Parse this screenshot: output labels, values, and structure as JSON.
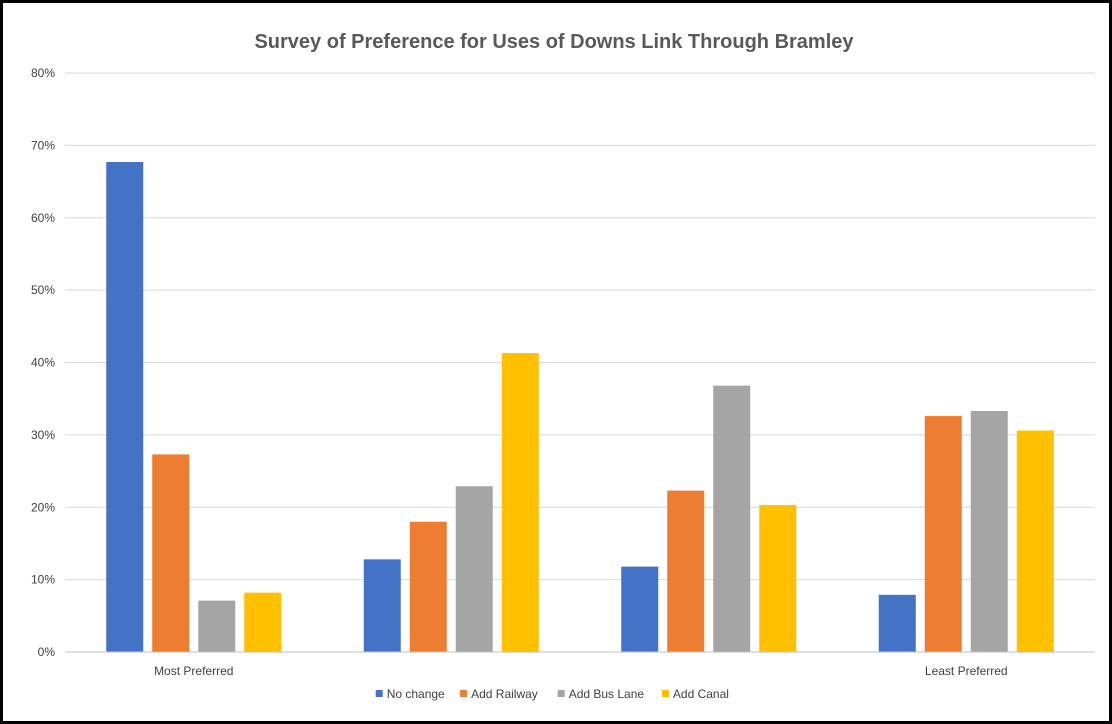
{
  "chart_data": {
    "type": "bar",
    "title": "Survey of Preference for Uses of Downs Link Through Bramley",
    "xlabel": "",
    "ylabel": "",
    "categories": [
      "Most Preferred",
      "",
      "",
      "Least Preferred"
    ],
    "series": [
      {
        "name": "No change",
        "color": "#4472C4",
        "values": [
          67.7,
          12.8,
          11.8,
          7.9
        ]
      },
      {
        "name": "Add Railway",
        "color": "#ED7D31",
        "values": [
          27.3,
          18.0,
          22.3,
          32.6
        ]
      },
      {
        "name": "Add Bus Lane",
        "color": "#A5A5A5",
        "values": [
          7.1,
          22.9,
          36.8,
          33.3
        ]
      },
      {
        "name": "Add Canal",
        "color": "#FFC000",
        "values": [
          8.2,
          41.3,
          20.3,
          30.6
        ]
      }
    ],
    "ylim": [
      0,
      80
    ],
    "yticks": [
      "0%",
      "10%",
      "20%",
      "30%",
      "40%",
      "50%",
      "60%",
      "70%",
      "80%"
    ],
    "grid": true,
    "legend_position": "bottom"
  }
}
